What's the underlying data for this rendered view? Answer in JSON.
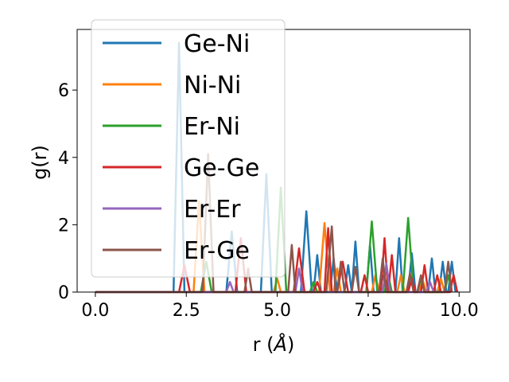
{
  "chart_data": {
    "type": "line",
    "xlabel": "r (",
    "xlabel_unit": "Å",
    "xlabel_close": ")",
    "ylabel": "g(r)",
    "xlim": [
      -0.5,
      10.3
    ],
    "ylim": [
      0,
      7.8
    ],
    "xticks": [
      0.0,
      2.5,
      5.0,
      7.5,
      10.0
    ],
    "xtick_labels": [
      "0.0",
      "2.5",
      "5.0",
      "7.5",
      "10.0"
    ],
    "yticks": [
      0,
      2,
      4,
      6
    ],
    "ytick_labels": [
      "0",
      "2",
      "4",
      "6"
    ],
    "grid": false,
    "legend_position": "top-left",
    "series": [
      {
        "name": "Ge-Ni",
        "color": "#1f77b4",
        "points": [
          [
            0,
            0
          ],
          [
            2.15,
            0
          ],
          [
            2.3,
            7.4
          ],
          [
            2.45,
            0
          ],
          [
            3.6,
            0
          ],
          [
            3.75,
            1.8
          ],
          [
            3.9,
            0
          ],
          [
            4.55,
            0
          ],
          [
            4.7,
            3.5
          ],
          [
            4.85,
            0
          ],
          [
            5.65,
            0
          ],
          [
            5.8,
            2.4
          ],
          [
            5.95,
            0
          ],
          [
            6.0,
            0
          ],
          [
            6.1,
            1.1
          ],
          [
            6.2,
            0
          ],
          [
            6.45,
            0
          ],
          [
            6.55,
            1.0
          ],
          [
            6.65,
            0
          ],
          [
            6.85,
            0
          ],
          [
            6.95,
            0.8
          ],
          [
            7.05,
            0
          ],
          [
            7.15,
            1.5
          ],
          [
            7.25,
            0
          ],
          [
            7.45,
            0
          ],
          [
            7.55,
            1.4
          ],
          [
            7.65,
            0
          ],
          [
            7.8,
            0
          ],
          [
            7.9,
            0.5
          ],
          [
            8.0,
            0
          ],
          [
            8.25,
            0
          ],
          [
            8.35,
            1.6
          ],
          [
            8.45,
            0
          ],
          [
            8.6,
            0
          ],
          [
            8.7,
            1.15
          ],
          [
            8.8,
            0
          ],
          [
            9.15,
            0
          ],
          [
            9.25,
            1.0
          ],
          [
            9.35,
            0
          ],
          [
            9.45,
            0
          ],
          [
            9.55,
            0.9
          ],
          [
            9.65,
            0
          ],
          [
            9.7,
            0
          ],
          [
            9.8,
            0.9
          ],
          [
            9.9,
            0
          ]
        ]
      },
      {
        "name": "Ni-Ni",
        "color": "#ff7f0e",
        "points": [
          [
            0,
            0
          ],
          [
            2.7,
            0
          ],
          [
            2.85,
            2.7
          ],
          [
            3.0,
            0
          ],
          [
            4.9,
            0
          ],
          [
            5.0,
            0.4
          ],
          [
            5.1,
            0
          ],
          [
            6.15,
            0
          ],
          [
            6.3,
            2.05
          ],
          [
            6.45,
            0
          ],
          [
            6.55,
            0
          ],
          [
            6.65,
            0.7
          ],
          [
            6.75,
            0
          ],
          [
            7.6,
            0
          ],
          [
            7.7,
            0.5
          ],
          [
            7.8,
            0
          ],
          [
            8.3,
            0
          ],
          [
            8.4,
            0.5
          ],
          [
            8.5,
            0
          ],
          [
            8.9,
            0
          ],
          [
            9.0,
            0.35
          ],
          [
            9.1,
            0
          ],
          [
            9.4,
            0
          ],
          [
            9.5,
            0.4
          ],
          [
            9.6,
            0
          ]
        ]
      },
      {
        "name": "Er-Ni",
        "color": "#2ca02c",
        "points": [
          [
            0,
            0
          ],
          [
            2.9,
            0
          ],
          [
            3.05,
            0.9
          ],
          [
            3.2,
            0
          ],
          [
            4.95,
            0
          ],
          [
            5.1,
            3.1
          ],
          [
            5.25,
            0
          ],
          [
            5.9,
            0
          ],
          [
            6.0,
            0.3
          ],
          [
            6.1,
            0
          ],
          [
            7.45,
            0
          ],
          [
            7.6,
            2.1
          ],
          [
            7.75,
            0
          ],
          [
            7.95,
            0
          ],
          [
            8.05,
            0.5
          ],
          [
            8.15,
            0
          ],
          [
            8.45,
            0
          ],
          [
            8.6,
            2.2
          ],
          [
            8.75,
            0
          ],
          [
            8.85,
            0
          ],
          [
            8.95,
            0.4
          ],
          [
            9.05,
            0
          ],
          [
            9.6,
            0
          ],
          [
            9.7,
            0.5
          ],
          [
            9.8,
            0
          ]
        ]
      },
      {
        "name": "Ge-Ge",
        "color": "#d62728",
        "points": [
          [
            0,
            0
          ],
          [
            2.3,
            0
          ],
          [
            2.45,
            0.8
          ],
          [
            2.6,
            0
          ],
          [
            3.85,
            0
          ],
          [
            4.0,
            1.6
          ],
          [
            4.15,
            0
          ],
          [
            5.45,
            0
          ],
          [
            5.6,
            1.3
          ],
          [
            5.75,
            0
          ],
          [
            6.0,
            0
          ],
          [
            6.1,
            0.3
          ],
          [
            6.2,
            0
          ],
          [
            6.3,
            0
          ],
          [
            6.4,
            1.9
          ],
          [
            6.5,
            0
          ],
          [
            6.65,
            0
          ],
          [
            6.8,
            0.9
          ],
          [
            6.95,
            0
          ],
          [
            7.3,
            0
          ],
          [
            7.4,
            0.5
          ],
          [
            7.5,
            0
          ],
          [
            7.85,
            0
          ],
          [
            7.95,
            1.6
          ],
          [
            8.05,
            0
          ],
          [
            8.05,
            0
          ],
          [
            8.15,
            1.1
          ],
          [
            8.25,
            0
          ],
          [
            8.6,
            0
          ],
          [
            8.7,
            0.4
          ],
          [
            8.8,
            0
          ],
          [
            8.95,
            0
          ],
          [
            9.05,
            0.8
          ],
          [
            9.15,
            0
          ],
          [
            9.3,
            0
          ],
          [
            9.4,
            0.5
          ],
          [
            9.5,
            0
          ],
          [
            9.75,
            0
          ],
          [
            9.85,
            0.5
          ],
          [
            9.95,
            0
          ]
        ]
      },
      {
        "name": "Er-Er",
        "color": "#9467bd",
        "points": [
          [
            0,
            0
          ],
          [
            3.6,
            0
          ],
          [
            3.7,
            0.3
          ],
          [
            3.8,
            0
          ],
          [
            5.5,
            0
          ],
          [
            5.6,
            0.7
          ],
          [
            5.7,
            0
          ],
          [
            7.9,
            0
          ],
          [
            8.0,
            0.85
          ],
          [
            8.1,
            0
          ],
          [
            9.1,
            0
          ],
          [
            9.2,
            0.3
          ],
          [
            9.3,
            0
          ]
        ]
      },
      {
        "name": "Er-Ge",
        "color": "#8c564b",
        "points": [
          [
            0,
            0
          ],
          [
            2.95,
            0
          ],
          [
            3.1,
            4.1
          ],
          [
            3.25,
            0
          ],
          [
            4.1,
            0
          ],
          [
            4.2,
            0.7
          ],
          [
            4.3,
            0
          ],
          [
            5.3,
            0
          ],
          [
            5.4,
            1.4
          ],
          [
            5.5,
            0
          ],
          [
            6.35,
            0
          ],
          [
            6.5,
            1.95
          ],
          [
            6.6,
            0
          ],
          [
            6.65,
            0
          ],
          [
            6.75,
            0.9
          ],
          [
            6.85,
            0
          ],
          [
            7.05,
            0
          ],
          [
            7.15,
            0.75
          ],
          [
            7.25,
            0
          ],
          [
            7.8,
            0
          ],
          [
            7.9,
            1.0
          ],
          [
            8.0,
            0
          ],
          [
            8.55,
            0
          ],
          [
            8.65,
            0.55
          ],
          [
            8.75,
            0
          ],
          [
            8.85,
            0
          ],
          [
            8.95,
            0.5
          ],
          [
            9.05,
            0
          ],
          [
            9.6,
            0
          ],
          [
            9.7,
            0.9
          ],
          [
            9.8,
            0
          ]
        ]
      }
    ]
  }
}
